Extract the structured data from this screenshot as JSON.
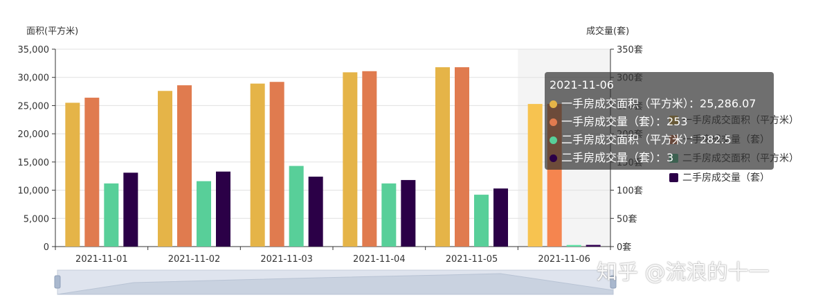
{
  "chart_data": {
    "type": "bar",
    "categories": [
      "2021-11-01",
      "2021-11-02",
      "2021-11-03",
      "2021-11-04",
      "2021-11-05",
      "2021-11-06"
    ],
    "y_left": {
      "label": "面积(平方米)",
      "range": [
        0,
        35000
      ],
      "ticks": [
        "0",
        "5,000",
        "10,000",
        "15,000",
        "20,000",
        "25,000",
        "30,000",
        "35,000"
      ]
    },
    "y_right": {
      "label": "成交量(套)",
      "range": [
        0,
        350
      ],
      "ticks": [
        "0套",
        "50套",
        "100套",
        "150套",
        "200套",
        "250套",
        "300套",
        "350套"
      ]
    },
    "series": [
      {
        "name": "一手房成交面积（平方米）",
        "axis": "left",
        "color": "#e5b448",
        "values": [
          25500,
          27600,
          28900,
          30900,
          31800,
          25286.07
        ]
      },
      {
        "name": "一手房成交量（套）",
        "axis": "right",
        "color": "#e07b4f",
        "values": [
          264,
          286,
          292,
          311,
          318,
          253
        ]
      },
      {
        "name": "二手房成交面积（平方米）",
        "axis": "left",
        "color": "#58cf99",
        "values": [
          11200,
          11600,
          14300,
          11200,
          9200,
          282.5
        ]
      },
      {
        "name": "二手房成交量（套）",
        "axis": "right",
        "color": "#2b0047",
        "values": [
          131,
          133,
          124,
          118,
          103,
          3
        ]
      }
    ],
    "legend": {
      "placement": "right"
    },
    "grid": true
  },
  "tooltip": {
    "title": "2021-11-06",
    "rows": [
      {
        "label": "一手房成交面积（平方米）",
        "value": "25,286.07",
        "color": "#e5b448"
      },
      {
        "label": "一手房成交量（套）",
        "value": "253",
        "color": "#e07b4f"
      },
      {
        "label": "二手房成交面积（平方米）",
        "value": "282.5",
        "color": "#58cf99"
      },
      {
        "label": "二手房成交量（套）",
        "value": "3",
        "color": "#2b0047"
      }
    ]
  },
  "watermark": "知乎 @流浪的十一"
}
